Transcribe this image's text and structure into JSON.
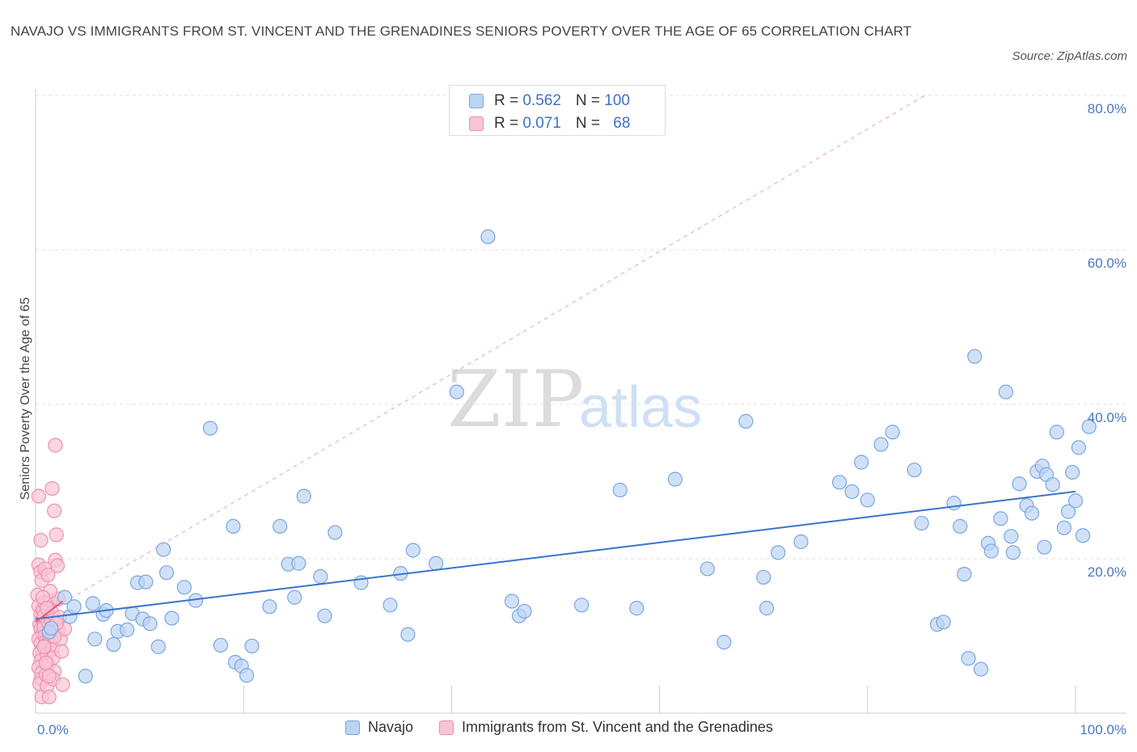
{
  "title": "NAVAJO VS IMMIGRANTS FROM ST. VINCENT AND THE GRENADINES SENIORS POVERTY OVER THE AGE OF 65 CORRELATION CHART",
  "source": "Source: ZipAtlas.com",
  "watermark": {
    "zip": "ZIP",
    "atlas": "atlas"
  },
  "legend": {
    "rows": [
      {
        "r_label": "R = ",
        "r_value": "0.562",
        "n_label": "N = ",
        "n_value": "100"
      },
      {
        "r_label": "R = ",
        "r_value": "0.071",
        "n_label": "N = ",
        "n_value": "68"
      }
    ]
  },
  "colors": {
    "navajo_fill": "#bcd4f4",
    "navajo_stroke": "#7aa6e0",
    "navajo_line": "#3a74cc",
    "svg_fill": "#f9c4d4",
    "svg_stroke": "#ee8fad",
    "svg_line": "#e8557f",
    "grid": "#e2e2e2",
    "axis_text": "#4a78c2"
  },
  "chart_data": {
    "type": "scatter",
    "title": "NAVAJO VS IMMIGRANTS FROM ST. VINCENT AND THE GRENADINES SENIORS POVERTY OVER THE AGE OF 65 CORRELATION CHART",
    "xlabel": "",
    "ylabel": "Seniors Poverty Over the Age of 65",
    "xlim": [
      0,
      100
    ],
    "ylim": [
      0,
      80
    ],
    "x_tick_labels": [
      "0.0%",
      "100.0%"
    ],
    "y_ticks": [
      20,
      40,
      60,
      80
    ],
    "y_tick_labels": [
      "20.0%",
      "40.0%",
      "60.0%",
      "80.0%"
    ],
    "grid": true,
    "legend_position": "bottom-center",
    "series": [
      {
        "name": "Navajo",
        "R": 0.562,
        "N": 100,
        "trend": {
          "x": [
            0,
            100
          ],
          "y": [
            12.2,
            28.7
          ]
        },
        "points": [
          [
            1.3,
            10.5
          ],
          [
            2.8,
            15.0
          ],
          [
            3.3,
            12.5
          ],
          [
            3.7,
            13.8
          ],
          [
            4.8,
            4.8
          ],
          [
            5.5,
            14.2
          ],
          [
            5.7,
            9.6
          ],
          [
            6.5,
            12.8
          ],
          [
            6.8,
            13.3
          ],
          [
            7.5,
            8.9
          ],
          [
            7.9,
            10.6
          ],
          [
            8.8,
            10.8
          ],
          [
            9.3,
            12.9
          ],
          [
            9.8,
            16.9
          ],
          [
            10.3,
            12.2
          ],
          [
            10.6,
            17.0
          ],
          [
            11.0,
            11.6
          ],
          [
            11.8,
            8.6
          ],
          [
            12.3,
            21.2
          ],
          [
            12.6,
            18.2
          ],
          [
            13.1,
            12.3
          ],
          [
            14.3,
            16.3
          ],
          [
            15.4,
            14.6
          ],
          [
            16.8,
            36.9
          ],
          [
            17.8,
            8.8
          ],
          [
            19.0,
            24.2
          ],
          [
            19.2,
            6.6
          ],
          [
            19.8,
            6.1
          ],
          [
            20.3,
            4.9
          ],
          [
            20.8,
            8.7
          ],
          [
            22.5,
            13.8
          ],
          [
            23.5,
            24.2
          ],
          [
            24.3,
            19.3
          ],
          [
            24.9,
            15.0
          ],
          [
            25.3,
            19.4
          ],
          [
            25.8,
            28.1
          ],
          [
            27.4,
            17.7
          ],
          [
            27.8,
            12.6
          ],
          [
            28.8,
            23.4
          ],
          [
            31.3,
            16.9
          ],
          [
            34.1,
            14.0
          ],
          [
            35.1,
            18.1
          ],
          [
            35.8,
            10.2
          ],
          [
            36.3,
            21.1
          ],
          [
            38.5,
            19.4
          ],
          [
            40.5,
            41.6
          ],
          [
            43.5,
            61.7
          ],
          [
            45.8,
            14.5
          ],
          [
            46.5,
            12.6
          ],
          [
            47.0,
            13.2
          ],
          [
            52.5,
            14.0
          ],
          [
            56.2,
            28.9
          ],
          [
            57.8,
            13.6
          ],
          [
            61.5,
            30.3
          ],
          [
            64.6,
            18.7
          ],
          [
            66.2,
            9.2
          ],
          [
            68.3,
            37.8
          ],
          [
            70.0,
            17.6
          ],
          [
            70.3,
            13.6
          ],
          [
            71.4,
            20.8
          ],
          [
            73.6,
            22.2
          ],
          [
            77.3,
            29.9
          ],
          [
            78.5,
            28.7
          ],
          [
            79.4,
            32.5
          ],
          [
            80.0,
            27.6
          ],
          [
            81.3,
            34.8
          ],
          [
            82.4,
            36.4
          ],
          [
            84.5,
            31.5
          ],
          [
            85.2,
            24.6
          ],
          [
            86.7,
            11.5
          ],
          [
            87.3,
            11.8
          ],
          [
            88.3,
            27.2
          ],
          [
            88.9,
            24.2
          ],
          [
            89.3,
            18.0
          ],
          [
            89.7,
            7.1
          ],
          [
            90.3,
            46.2
          ],
          [
            90.9,
            5.7
          ],
          [
            91.6,
            22.0
          ],
          [
            91.9,
            21.0
          ],
          [
            92.8,
            25.2
          ],
          [
            93.3,
            41.6
          ],
          [
            93.8,
            22.9
          ],
          [
            94.6,
            29.7
          ],
          [
            95.3,
            26.9
          ],
          [
            95.8,
            25.9
          ],
          [
            96.3,
            31.3
          ],
          [
            96.8,
            32.0
          ],
          [
            97.2,
            30.9
          ],
          [
            97.8,
            29.6
          ],
          [
            98.2,
            36.4
          ],
          [
            98.9,
            24.0
          ],
          [
            99.3,
            26.1
          ],
          [
            99.7,
            31.2
          ],
          [
            100.3,
            34.4
          ],
          [
            100.7,
            23.0
          ],
          [
            101.3,
            37.1
          ],
          [
            94.0,
            20.8
          ],
          [
            97.0,
            21.5
          ],
          [
            100.0,
            27.5
          ],
          [
            1.5,
            11.0
          ]
        ]
      },
      {
        "name": "Immigrants from St. Vincent and the Grenadines",
        "R": 0.071,
        "N": 68,
        "trend": {
          "x": [
            0,
            2.6
          ],
          "y": [
            11.8,
            14.5
          ]
        },
        "points": [
          [
            0.3,
            28.1
          ],
          [
            0.5,
            22.4
          ],
          [
            0.3,
            19.2
          ],
          [
            0.5,
            18.3
          ],
          [
            0.6,
            17.2
          ],
          [
            0.2,
            15.3
          ],
          [
            0.3,
            13.9
          ],
          [
            0.5,
            12.8
          ],
          [
            0.6,
            12.0
          ],
          [
            0.4,
            11.5
          ],
          [
            0.5,
            10.9
          ],
          [
            0.7,
            10.3
          ],
          [
            0.3,
            9.6
          ],
          [
            0.5,
            9.0
          ],
          [
            0.6,
            8.2
          ],
          [
            0.4,
            7.8
          ],
          [
            0.5,
            6.8
          ],
          [
            0.3,
            5.9
          ],
          [
            0.6,
            5.2
          ],
          [
            0.5,
            4.4
          ],
          [
            0.4,
            3.8
          ],
          [
            0.6,
            2.1
          ],
          [
            0.7,
            13.4
          ],
          [
            0.8,
            11.2
          ],
          [
            0.9,
            10.0
          ],
          [
            1.0,
            9.3
          ],
          [
            0.8,
            12.6
          ],
          [
            0.9,
            14.3
          ],
          [
            1.0,
            8.8
          ],
          [
            1.1,
            7.6
          ],
          [
            1.2,
            6.3
          ],
          [
            1.0,
            5.0
          ],
          [
            1.1,
            3.5
          ],
          [
            1.3,
            2.1
          ],
          [
            1.2,
            11.8
          ],
          [
            1.3,
            10.4
          ],
          [
            1.4,
            9.4
          ],
          [
            1.5,
            12.1
          ],
          [
            1.4,
            14.6
          ],
          [
            1.6,
            13.0
          ],
          [
            1.5,
            11.0
          ],
          [
            1.6,
            8.3
          ],
          [
            1.7,
            7.2
          ],
          [
            1.8,
            5.4
          ],
          [
            1.7,
            4.4
          ],
          [
            1.6,
            29.1
          ],
          [
            1.8,
            26.2
          ],
          [
            2.0,
            23.1
          ],
          [
            1.9,
            19.8
          ],
          [
            2.1,
            19.1
          ],
          [
            2.2,
            14.8
          ],
          [
            2.3,
            12.4
          ],
          [
            2.2,
            10.8
          ],
          [
            2.4,
            9.6
          ],
          [
            2.5,
            8.0
          ],
          [
            2.6,
            3.7
          ],
          [
            2.8,
            10.9
          ],
          [
            1.9,
            34.7
          ],
          [
            1.0,
            6.5
          ],
          [
            0.9,
            18.7
          ],
          [
            1.2,
            17.9
          ],
          [
            1.4,
            15.8
          ],
          [
            0.7,
            15.0
          ],
          [
            1.1,
            13.6
          ],
          [
            1.8,
            9.9
          ],
          [
            2.0,
            11.6
          ],
          [
            1.3,
            4.8
          ],
          [
            0.8,
            8.6
          ]
        ]
      }
    ],
    "reference_line": {
      "style": "dashed",
      "x": [
        0,
        85.5
      ],
      "y": [
        12.2,
        80
      ]
    }
  }
}
